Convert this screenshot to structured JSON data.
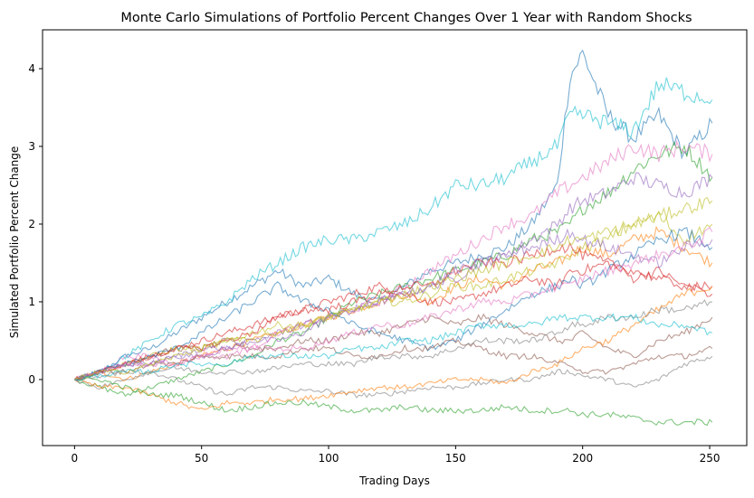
{
  "chart_data": {
    "type": "line",
    "title": "Monte Carlo Simulations of Portfolio Percent Changes Over 1 Year with Random Shocks",
    "xlabel": "Trading Days",
    "ylabel": "Simulated Portfolio Percent Change",
    "xlim": [
      -12.6,
      264.6
    ],
    "ylim": [
      -0.85,
      4.5
    ],
    "x_ticks": [
      0,
      50,
      100,
      150,
      200,
      250
    ],
    "y_ticks": [
      0,
      1,
      2,
      3,
      4
    ],
    "grid": false,
    "legend": "none",
    "line_alpha": 0.6,
    "colors": [
      "#1f77b4",
      "#ff7f0e",
      "#2ca02c",
      "#d62728",
      "#9467bd",
      "#8c564b",
      "#e377c2",
      "#7f7f7f",
      "#bcbd22",
      "#17becf"
    ],
    "x": [
      0,
      10,
      20,
      30,
      40,
      50,
      60,
      70,
      80,
      90,
      100,
      110,
      120,
      130,
      140,
      150,
      160,
      170,
      180,
      190,
      195,
      200,
      210,
      220,
      230,
      240,
      251
    ],
    "series": [
      {
        "values": [
          0,
          0.1,
          0.3,
          0.4,
          0.6,
          0.8,
          1.0,
          1.2,
          1.4,
          1.2,
          1.3,
          1.1,
          1.0,
          1.2,
          1.4,
          1.5,
          1.6,
          1.7,
          2.0,
          2.5,
          3.9,
          4.2,
          3.4,
          3.1,
          3.4,
          2.9,
          3.3
        ]
      },
      {
        "values": [
          0,
          0.1,
          0.0,
          0.1,
          0.2,
          0.3,
          0.4,
          0.5,
          0.6,
          0.7,
          0.8,
          0.9,
          1.0,
          1.1,
          1.0,
          1.2,
          1.3,
          1.2,
          1.4,
          1.5,
          1.6,
          1.7,
          1.6,
          1.8,
          1.9,
          1.7,
          1.5
        ]
      },
      {
        "values": [
          0,
          -0.1,
          -0.2,
          -0.1,
          0.0,
          0.1,
          0.2,
          0.3,
          0.5,
          0.6,
          0.8,
          1.0,
          1.1,
          1.2,
          1.3,
          1.4,
          1.5,
          1.6,
          1.8,
          1.9,
          2.0,
          2.2,
          2.4,
          2.7,
          2.9,
          3.0,
          2.6
        ]
      },
      {
        "values": [
          0,
          0.1,
          0.2,
          0.3,
          0.4,
          0.5,
          0.6,
          0.7,
          0.8,
          0.9,
          1.0,
          1.1,
          1.2,
          1.1,
          1.0,
          1.0,
          1.1,
          1.2,
          1.3,
          1.2,
          1.4,
          1.4,
          1.5,
          1.3,
          1.4,
          1.2,
          1.2
        ]
      },
      {
        "values": [
          0,
          0.1,
          0.2,
          0.2,
          0.3,
          0.3,
          0.4,
          0.5,
          0.5,
          0.6,
          0.8,
          0.9,
          1.0,
          1.1,
          1.2,
          1.3,
          1.5,
          1.6,
          1.8,
          2.0,
          2.2,
          2.3,
          2.4,
          2.6,
          2.5,
          2.4,
          2.6
        ]
      },
      {
        "values": [
          0,
          0.1,
          0.2,
          0.3,
          0.4,
          0.4,
          0.5,
          0.4,
          0.4,
          0.5,
          0.5,
          0.6,
          0.6,
          0.7,
          0.8,
          0.7,
          0.8,
          0.7,
          0.6,
          0.5,
          0.5,
          0.6,
          0.4,
          0.3,
          0.5,
          0.6,
          0.8
        ]
      },
      {
        "values": [
          0,
          0.1,
          0.3,
          0.3,
          0.2,
          0.3,
          0.4,
          0.4,
          0.6,
          0.7,
          0.8,
          0.9,
          1.0,
          1.2,
          1.4,
          1.6,
          1.8,
          2.0,
          2.1,
          2.4,
          2.5,
          2.6,
          2.8,
          3.0,
          2.9,
          3.0,
          2.9
        ]
      },
      {
        "values": [
          0,
          -0.1,
          0.0,
          0.1,
          0.0,
          -0.1,
          -0.2,
          -0.1,
          -0.1,
          -0.15,
          -0.15,
          -0.2,
          -0.2,
          -0.15,
          -0.1,
          -0.1,
          -0.05,
          0.0,
          0.0,
          0.1,
          0.1,
          0.05,
          0.0,
          -0.1,
          0.0,
          0.2,
          0.3
        ]
      },
      {
        "values": [
          0,
          0.1,
          0.2,
          0.3,
          0.4,
          0.4,
          0.5,
          0.6,
          0.7,
          0.7,
          0.8,
          0.9,
          1.0,
          1.0,
          1.1,
          1.2,
          1.2,
          1.3,
          1.4,
          1.5,
          1.6,
          1.7,
          1.8,
          2.0,
          2.1,
          1.8,
          2.0
        ]
      },
      {
        "values": [
          0,
          0.1,
          0.3,
          0.5,
          0.7,
          0.8,
          1.0,
          1.3,
          1.5,
          1.7,
          1.8,
          1.8,
          1.9,
          2.0,
          2.2,
          2.5,
          2.5,
          2.6,
          2.8,
          3.0,
          3.4,
          3.4,
          3.3,
          3.2,
          3.8,
          3.7,
          3.6
        ]
      },
      {
        "values": [
          0,
          0.1,
          0.2,
          0.3,
          0.4,
          0.6,
          0.8,
          1.0,
          1.2,
          1.0,
          0.9,
          0.7,
          0.6,
          0.5,
          0.4,
          0.5,
          0.7,
          0.9,
          1.1,
          1.2,
          1.3,
          1.2,
          1.4,
          1.6,
          1.8,
          1.9,
          1.7
        ]
      },
      {
        "values": [
          0,
          -0.1,
          -0.1,
          -0.2,
          -0.3,
          -0.4,
          -0.3,
          -0.3,
          -0.25,
          -0.25,
          -0.2,
          -0.15,
          -0.1,
          -0.1,
          -0.05,
          0.0,
          0.0,
          -0.05,
          0.1,
          0.2,
          0.3,
          0.4,
          0.5,
          0.7,
          0.9,
          1.1,
          1.2
        ]
      },
      {
        "values": [
          0,
          0.0,
          -0.1,
          -0.2,
          -0.2,
          -0.3,
          -0.4,
          -0.35,
          -0.3,
          -0.3,
          -0.35,
          -0.4,
          -0.4,
          -0.35,
          -0.4,
          -0.4,
          -0.4,
          -0.35,
          -0.4,
          -0.4,
          -0.4,
          -0.45,
          -0.45,
          -0.5,
          -0.55,
          -0.55,
          -0.55
        ]
      },
      {
        "values": [
          0,
          0.1,
          0.2,
          0.3,
          0.4,
          0.4,
          0.5,
          0.6,
          0.8,
          0.9,
          0.9,
          1.0,
          1.1,
          1.2,
          1.2,
          1.4,
          1.5,
          1.5,
          1.6,
          1.7,
          1.7,
          1.6,
          1.5,
          1.4,
          1.3,
          1.2,
          1.1
        ]
      },
      {
        "values": [
          0,
          0.1,
          0.2,
          0.2,
          0.3,
          0.4,
          0.4,
          0.5,
          0.6,
          0.7,
          0.8,
          0.9,
          1.0,
          1.1,
          1.2,
          1.4,
          1.5,
          1.6,
          1.7,
          1.8,
          1.9,
          1.8,
          1.7,
          1.6,
          1.5,
          1.7,
          1.8
        ]
      },
      {
        "values": [
          0,
          0.1,
          0.1,
          0.2,
          0.2,
          0.3,
          0.3,
          0.3,
          0.3,
          0.4,
          0.4,
          0.3,
          0.3,
          0.4,
          0.4,
          0.5,
          0.4,
          0.3,
          0.3,
          0.2,
          0.2,
          0.1,
          0.1,
          0.2,
          0.3,
          0.3,
          0.4
        ]
      },
      {
        "values": [
          0,
          0.1,
          0.2,
          0.2,
          0.2,
          0.3,
          0.3,
          0.4,
          0.4,
          0.4,
          0.5,
          0.6,
          0.7,
          0.7,
          0.8,
          0.9,
          1.0,
          1.0,
          1.1,
          1.2,
          1.2,
          1.3,
          1.4,
          1.5,
          1.6,
          1.7,
          1.9
        ]
      },
      {
        "values": [
          0,
          0.05,
          0.1,
          0.1,
          0.15,
          0.1,
          0.1,
          0.1,
          0.15,
          0.2,
          0.2,
          0.2,
          0.3,
          0.3,
          0.3,
          0.4,
          0.5,
          0.5,
          0.5,
          0.6,
          0.7,
          0.7,
          0.8,
          0.8,
          0.9,
          0.9,
          1.0
        ]
      },
      {
        "values": [
          0,
          0.1,
          0.1,
          0.2,
          0.3,
          0.4,
          0.5,
          0.5,
          0.6,
          0.7,
          0.8,
          0.9,
          1.0,
          1.1,
          1.2,
          1.3,
          1.4,
          1.5,
          1.6,
          1.7,
          1.8,
          1.8,
          1.9,
          2.0,
          2.1,
          2.2,
          2.3
        ]
      },
      {
        "values": [
          0,
          0.05,
          0.1,
          0.1,
          0.2,
          0.2,
          0.2,
          0.3,
          0.3,
          0.3,
          0.3,
          0.4,
          0.4,
          0.5,
          0.5,
          0.6,
          0.7,
          0.7,
          0.7,
          0.8,
          0.8,
          0.8,
          0.8,
          0.8,
          0.7,
          0.7,
          0.6
        ]
      }
    ]
  }
}
